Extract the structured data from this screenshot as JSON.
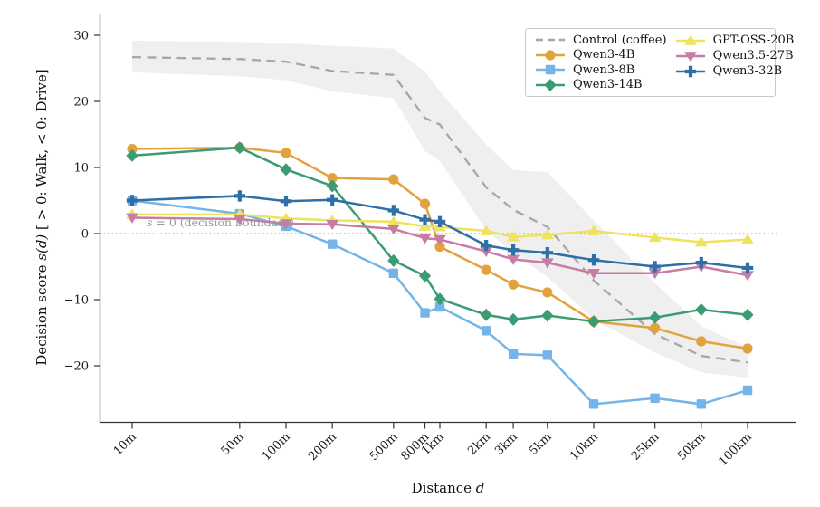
{
  "chart_data": {
    "type": "line",
    "x_scale": "log",
    "title": "",
    "xlabel": {
      "prefix": "Distance ",
      "symbol": "d"
    },
    "ylabel": {
      "prefix": "Decision score ",
      "symbol": "s(d)",
      "suffix": " [ > 0: Walk,  < 0: Drive]"
    },
    "annotation": {
      "symbol": "s",
      "text": " = 0 (decision boundary)"
    },
    "legend_position": "upper right",
    "grid": false,
    "ylim": [
      -29,
      33
    ],
    "yticks": [
      30,
      20,
      10,
      0,
      -10,
      -20
    ],
    "categories": [
      "10m",
      "50m",
      "100m",
      "200m",
      "500m",
      "800m",
      "1km",
      "2km",
      "3km",
      "5km",
      "10km",
      "25km",
      "50km",
      "100km"
    ],
    "x_meters": [
      10,
      50,
      100,
      200,
      500,
      800,
      1000,
      2000,
      3000,
      5000,
      10000,
      25000,
      50000,
      100000
    ],
    "control_band": {
      "color": "#cfcfcf",
      "upper": [
        29.2,
        29.0,
        28.8,
        28.4,
        28.0,
        24.5,
        21.5,
        13.5,
        9.6,
        9.3,
        2.0,
        -7.5,
        -14.0,
        -17.2
      ],
      "lower": [
        24.4,
        23.8,
        23.2,
        21.5,
        20.5,
        12.5,
        11.0,
        0.5,
        -3.0,
        -6.5,
        -13.0,
        -18.0,
        -21.0,
        -21.8
      ]
    },
    "series": [
      {
        "name": "Control (coffee)",
        "color": "#a6a6a6",
        "style": "dashed",
        "marker": "none",
        "values": [
          26.7,
          26.4,
          26.0,
          24.6,
          24.0,
          17.5,
          16.5,
          7.0,
          3.6,
          1.0,
          -7.1,
          -15.2,
          -18.5,
          -19.5
        ]
      },
      {
        "name": "Qwen3-4B",
        "color": "#E2A23D",
        "style": "solid",
        "marker": "circle",
        "values": [
          12.8,
          13.0,
          12.2,
          8.4,
          8.2,
          4.5,
          -2.0,
          -5.5,
          -7.7,
          -8.9,
          -13.3,
          -14.3,
          -16.3,
          -17.4
        ]
      },
      {
        "name": "Qwen3-8B",
        "color": "#74B4E8",
        "style": "solid",
        "marker": "square",
        "values": [
          5.0,
          3.0,
          1.1,
          -1.6,
          -6.0,
          -12.0,
          -11.1,
          -14.7,
          -18.2,
          -18.4,
          -25.8,
          -24.9,
          -25.8,
          -23.7
        ]
      },
      {
        "name": "Qwen3-14B",
        "color": "#3B9B72",
        "style": "solid",
        "marker": "diamond",
        "values": [
          11.8,
          13.0,
          9.7,
          7.2,
          -4.1,
          -6.4,
          -9.9,
          -12.3,
          -13.0,
          -12.4,
          -13.3,
          -12.7,
          -11.5,
          -12.3
        ]
      },
      {
        "name": "GPT-OSS-20B",
        "color": "#EFE25C",
        "style": "solid",
        "marker": "triangle-up",
        "values": [
          2.9,
          2.9,
          2.3,
          2.0,
          1.8,
          1.1,
          1.0,
          0.4,
          -0.5,
          -0.2,
          0.4,
          -0.6,
          -1.3,
          -0.9
        ]
      },
      {
        "name": "Qwen3.5-27B",
        "color": "#C77CA5",
        "style": "solid",
        "marker": "triangle-down",
        "values": [
          2.4,
          2.2,
          1.5,
          1.4,
          0.7,
          -0.7,
          -0.9,
          -2.7,
          -3.9,
          -4.4,
          -6.0,
          -6.0,
          -5.0,
          -6.3
        ]
      },
      {
        "name": "Qwen3-32B",
        "color": "#2F6FA8",
        "style": "solid",
        "marker": "plus",
        "values": [
          5.0,
          5.7,
          4.9,
          5.1,
          3.5,
          2.1,
          1.8,
          -1.8,
          -2.5,
          -2.9,
          -4.0,
          -5.0,
          -4.4,
          -5.2
        ]
      }
    ]
  }
}
